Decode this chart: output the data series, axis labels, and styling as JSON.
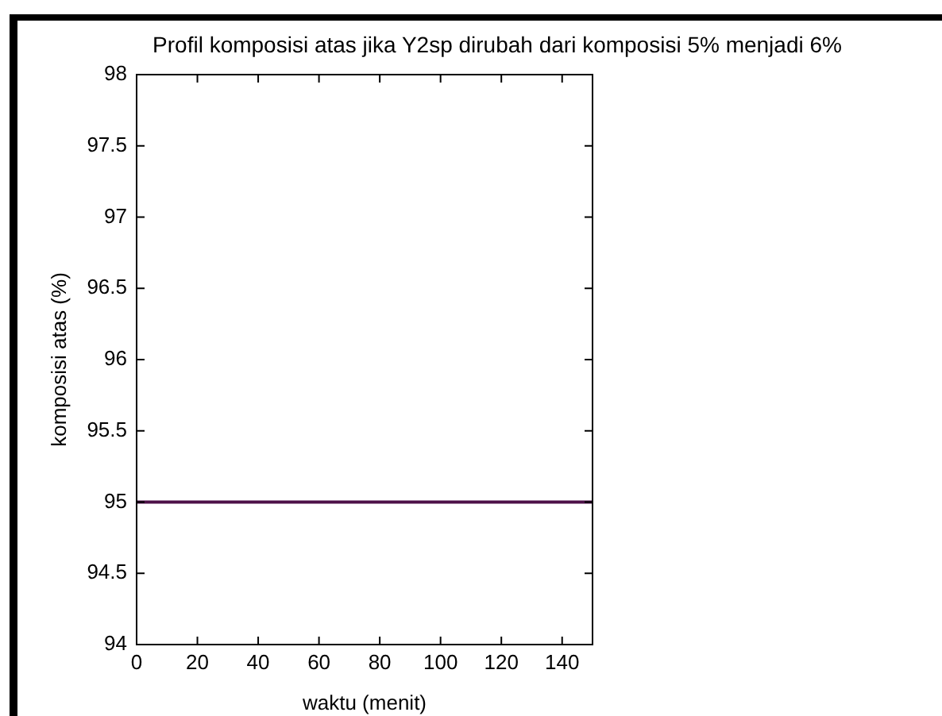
{
  "chart_data": {
    "type": "line",
    "title": "Profil komposisi atas jika Y2sp dirubah dari komposisi 5% menjadi 6%",
    "xlabel": "waktu (menit)",
    "ylabel": "komposisi atas (%)",
    "x": [
      0,
      150
    ],
    "series": [
      {
        "color": "#4d1048",
        "values": [
          95,
          95
        ]
      }
    ],
    "xlim": [
      0,
      150
    ],
    "xticks": [
      0,
      20,
      40,
      60,
      80,
      100,
      120,
      140
    ],
    "ylim": [
      94,
      98
    ],
    "yticks": [
      94,
      94.5,
      95,
      95.5,
      96,
      96.5,
      97,
      97.5,
      98
    ],
    "grid": false,
    "legend": false,
    "marker": "none",
    "line_style": "solid"
  }
}
